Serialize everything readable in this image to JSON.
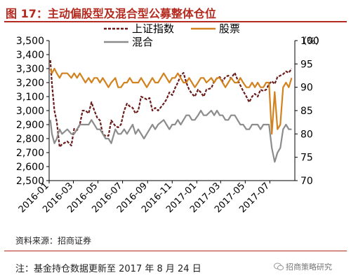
{
  "header": {
    "title": "图 17：主动偏股型及混合型公募整体仓位"
  },
  "footer": {
    "source": "资料来源：招商证券",
    "note": "注：基金持仓数据更新至 2017 年 8 月 24 日",
    "watermark": "招商策略研究"
  },
  "colors": {
    "index": "#6b1c1c",
    "stock": "#d2821e",
    "mixed": "#8c8c8c",
    "title": "#b52a1e"
  },
  "chart_data": {
    "type": "line",
    "x_ticks": [
      "2016-01",
      "2016-03",
      "2016-05",
      "2016-07",
      "2016-09",
      "2016-11",
      "2017-01",
      "2017-03",
      "2017-05",
      "2017-07"
    ],
    "y_left": {
      "min": 2500,
      "max": 3500,
      "ticks": [
        "2,500",
        "2,600",
        "2,700",
        "2,800",
        "2,900",
        "3,000",
        "3,100",
        "3,200",
        "3,300",
        "3,400",
        "3,500"
      ]
    },
    "y_right": {
      "min": 70,
      "max": 100,
      "ticks": [
        "70",
        "75",
        "80",
        "85",
        "90",
        "95",
        "100"
      ],
      "unit": "（%）"
    },
    "legend": [
      {
        "name": "上证指数",
        "style": "dashed",
        "axis": "left"
      },
      {
        "name": "股票",
        "style": "solid",
        "axis": "right"
      },
      {
        "name": "混合",
        "style": "solid",
        "axis": "right"
      }
    ],
    "series": [
      {
        "name": "上证指数",
        "axis": "left",
        "x": [
          "2016-01-04",
          "2016-01-08",
          "2016-01-14",
          "2016-01-20",
          "2016-01-27",
          "2016-02-02",
          "2016-02-15",
          "2016-02-25",
          "2016-03-03",
          "2016-03-10",
          "2016-03-17",
          "2016-03-24",
          "2016-03-31",
          "2016-04-08",
          "2016-04-15",
          "2016-04-22",
          "2016-04-29",
          "2016-05-06",
          "2016-05-13",
          "2016-05-20",
          "2016-05-27",
          "2016-06-03",
          "2016-06-13",
          "2016-06-20",
          "2016-06-27",
          "2016-07-05",
          "2016-07-12",
          "2016-07-19",
          "2016-07-26",
          "2016-08-02",
          "2016-08-09",
          "2016-08-16",
          "2016-08-23",
          "2016-08-30",
          "2016-09-06",
          "2016-09-13",
          "2016-09-20",
          "2016-09-27",
          "2016-10-11",
          "2016-10-18",
          "2016-10-25",
          "2016-11-01",
          "2016-11-08",
          "2016-11-15",
          "2016-11-22",
          "2016-11-29",
          "2016-12-06",
          "2016-12-13",
          "2016-12-20",
          "2016-12-27",
          "2017-01-04",
          "2017-01-11",
          "2017-01-18",
          "2017-01-25",
          "2017-02-06",
          "2017-02-13",
          "2017-02-20",
          "2017-02-27",
          "2017-03-06",
          "2017-03-13",
          "2017-03-20",
          "2017-03-27",
          "2017-04-05",
          "2017-04-12",
          "2017-04-19",
          "2017-04-26",
          "2017-05-04",
          "2017-05-11",
          "2017-05-18",
          "2017-05-25",
          "2017-06-01",
          "2017-06-08",
          "2017-06-15",
          "2017-06-22",
          "2017-06-29",
          "2017-07-06",
          "2017-07-13",
          "2017-07-20",
          "2017-07-27",
          "2017-08-03",
          "2017-08-10",
          "2017-08-17",
          "2017-08-24"
        ],
        "values": [
          3360,
          3190,
          3000,
          2920,
          2740,
          2760,
          2780,
          2750,
          2870,
          2860,
          2900,
          3000,
          3000,
          2980,
          3060,
          3000,
          2950,
          2930,
          2830,
          2820,
          2820,
          2930,
          2890,
          2880,
          2900,
          3000,
          3050,
          3030,
          3020,
          2980,
          3000,
          3100,
          3090,
          3080,
          3090,
          3000,
          3020,
          3000,
          3050,
          3080,
          3130,
          3110,
          3160,
          3200,
          3250,
          3270,
          3200,
          3150,
          3120,
          3100,
          3150,
          3130,
          3100,
          3150,
          3160,
          3210,
          3230,
          3240,
          3210,
          3240,
          3250,
          3230,
          3270,
          3220,
          3180,
          3140,
          3100,
          3060,
          3100,
          3120,
          3100,
          3150,
          3140,
          3150,
          3190,
          3210,
          3190,
          3240,
          3250,
          3260,
          3280,
          3270,
          3300
        ]
      },
      {
        "name": "股票",
        "axis": "right",
        "x": [
          "2016-01-04",
          "2016-01-08",
          "2016-01-14",
          "2016-01-20",
          "2016-01-27",
          "2016-02-02",
          "2016-02-15",
          "2016-02-25",
          "2016-03-03",
          "2016-03-10",
          "2016-03-17",
          "2016-03-24",
          "2016-03-31",
          "2016-04-08",
          "2016-04-15",
          "2016-04-22",
          "2016-04-29",
          "2016-05-06",
          "2016-05-13",
          "2016-05-20",
          "2016-05-27",
          "2016-06-03",
          "2016-06-13",
          "2016-06-20",
          "2016-06-27",
          "2016-07-05",
          "2016-07-12",
          "2016-07-19",
          "2016-07-26",
          "2016-08-02",
          "2016-08-09",
          "2016-08-16",
          "2016-08-23",
          "2016-08-30",
          "2016-09-06",
          "2016-09-13",
          "2016-09-20",
          "2016-09-27",
          "2016-10-11",
          "2016-10-18",
          "2016-10-25",
          "2016-11-01",
          "2016-11-08",
          "2016-11-15",
          "2016-11-22",
          "2016-11-29",
          "2016-12-06",
          "2016-12-13",
          "2016-12-20",
          "2016-12-27",
          "2017-01-04",
          "2017-01-11",
          "2017-01-18",
          "2017-01-25",
          "2017-02-06",
          "2017-02-13",
          "2017-02-20",
          "2017-02-27",
          "2017-03-06",
          "2017-03-13",
          "2017-03-20",
          "2017-03-27",
          "2017-04-05",
          "2017-04-12",
          "2017-04-19",
          "2017-04-26",
          "2017-05-04",
          "2017-05-11",
          "2017-05-18",
          "2017-05-25",
          "2017-06-01",
          "2017-06-08",
          "2017-06-15",
          "2017-06-22",
          "2017-06-29",
          "2017-07-06",
          "2017-07-13",
          "2017-07-20",
          "2017-07-27",
          "2017-08-03",
          "2017-08-10",
          "2017-08-17",
          "2017-08-24"
        ],
        "values": [
          94,
          93,
          94,
          93,
          92,
          93,
          93,
          92,
          93,
          92,
          93,
          92,
          91,
          92,
          91,
          92,
          92,
          91,
          92,
          91,
          90,
          91,
          92,
          90,
          90,
          91,
          91,
          92,
          91,
          91,
          91,
          92,
          91,
          90,
          91,
          92,
          91,
          91,
          93,
          92,
          91,
          92,
          92,
          93,
          92,
          91,
          91,
          92,
          91,
          90,
          91,
          92,
          92,
          91,
          92,
          91,
          92,
          92,
          91,
          90,
          91,
          92,
          91,
          91,
          92,
          91,
          90,
          90,
          91,
          90,
          91,
          90,
          90,
          91,
          91,
          80,
          89,
          81,
          82,
          90,
          91,
          90,
          92
        ]
      },
      {
        "name": "混合",
        "axis": "right",
        "x": [
          "2016-01-04",
          "2016-01-08",
          "2016-01-14",
          "2016-01-20",
          "2016-01-27",
          "2016-02-02",
          "2016-02-15",
          "2016-02-25",
          "2016-03-03",
          "2016-03-10",
          "2016-03-17",
          "2016-03-24",
          "2016-03-31",
          "2016-04-08",
          "2016-04-15",
          "2016-04-22",
          "2016-04-29",
          "2016-05-06",
          "2016-05-13",
          "2016-05-20",
          "2016-05-27",
          "2016-06-03",
          "2016-06-13",
          "2016-06-20",
          "2016-06-27",
          "2016-07-05",
          "2016-07-12",
          "2016-07-19",
          "2016-07-26",
          "2016-08-02",
          "2016-08-09",
          "2016-08-16",
          "2016-08-23",
          "2016-08-30",
          "2016-09-06",
          "2016-09-13",
          "2016-09-20",
          "2016-09-27",
          "2016-10-11",
          "2016-10-18",
          "2016-10-25",
          "2016-11-01",
          "2016-11-08",
          "2016-11-15",
          "2016-11-22",
          "2016-11-29",
          "2016-12-06",
          "2016-12-13",
          "2016-12-20",
          "2016-12-27",
          "2017-01-04",
          "2017-01-11",
          "2017-01-18",
          "2017-01-25",
          "2017-02-06",
          "2017-02-13",
          "2017-02-20",
          "2017-02-27",
          "2017-03-06",
          "2017-03-13",
          "2017-03-20",
          "2017-03-27",
          "2017-04-05",
          "2017-04-12",
          "2017-04-19",
          "2017-04-26",
          "2017-05-04",
          "2017-05-11",
          "2017-05-18",
          "2017-05-25",
          "2017-06-01",
          "2017-06-08",
          "2017-06-15",
          "2017-06-22",
          "2017-06-29",
          "2017-07-06",
          "2017-07-13",
          "2017-07-20",
          "2017-07-27",
          "2017-08-03",
          "2017-08-10",
          "2017-08-17",
          "2017-08-24"
        ],
        "values": [
          83,
          80,
          78,
          79,
          81,
          80,
          81,
          80,
          80,
          81,
          82,
          82,
          82,
          82,
          83,
          82,
          81,
          81,
          80,
          79,
          79,
          78,
          81,
          80,
          80,
          81,
          80,
          81,
          82,
          80,
          81,
          80,
          79,
          80,
          81,
          82,
          81,
          82,
          83,
          82,
          81,
          82,
          82,
          83,
          82,
          83,
          84,
          84,
          83,
          83,
          84,
          85,
          84,
          84,
          85,
          84,
          85,
          84,
          84,
          83,
          83,
          84,
          84,
          83,
          82,
          82,
          81,
          81,
          82,
          82,
          82,
          81,
          82,
          82,
          82,
          77,
          74,
          76,
          77,
          81,
          82,
          81,
          81
        ]
      }
    ]
  }
}
